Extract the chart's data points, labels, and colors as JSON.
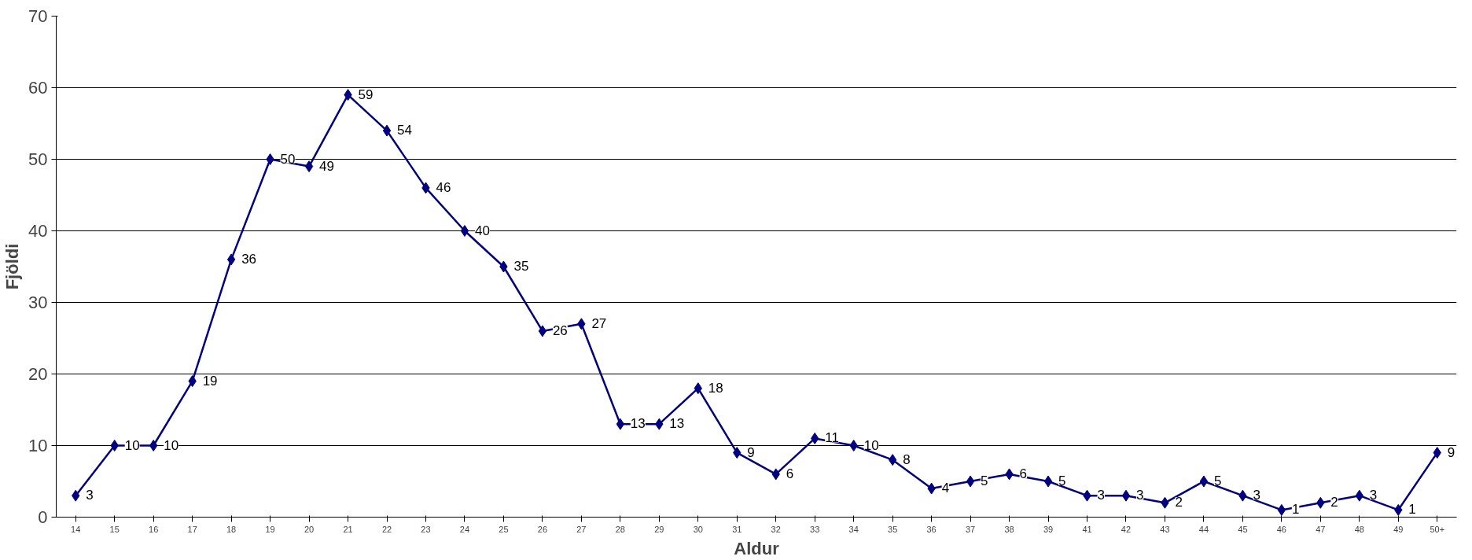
{
  "chart_data": {
    "type": "line",
    "xlabel": "Aldur",
    "ylabel": "Fjöldi",
    "categories": [
      "14",
      "15",
      "16",
      "17",
      "18",
      "19",
      "20",
      "21",
      "22",
      "23",
      "24",
      "25",
      "26",
      "27",
      "28",
      "29",
      "30",
      "31",
      "32",
      "33",
      "34",
      "35",
      "36",
      "37",
      "38",
      "39",
      "41",
      "42",
      "43",
      "44",
      "45",
      "46",
      "47",
      "48",
      "49",
      "50+"
    ],
    "series": [
      {
        "color": "#000080",
        "values": [
          3,
          10,
          10,
          19,
          36,
          50,
          49,
          59,
          54,
          46,
          40,
          35,
          26,
          27,
          13,
          13,
          18,
          9,
          6,
          11,
          10,
          8,
          4,
          5,
          6,
          5,
          3,
          3,
          2,
          5,
          3,
          1,
          2,
          3,
          1,
          9
        ]
      }
    ],
    "ylim": [
      0,
      70
    ],
    "yticks": [
      0,
      10,
      20,
      30,
      40,
      50,
      60,
      70
    ],
    "grid": "y",
    "marker": "diamond",
    "line_style": "solid",
    "data_labels": true
  }
}
